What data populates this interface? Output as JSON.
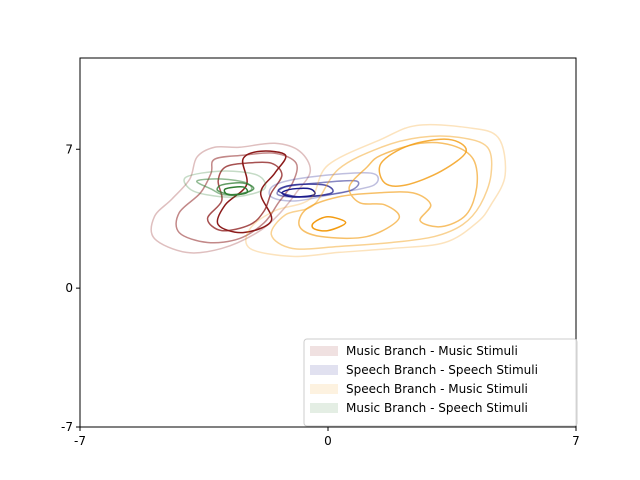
{
  "chart_data": {
    "type": "contour",
    "title": "",
    "xlabel": "",
    "ylabel": "",
    "xlim": [
      -7,
      7
    ],
    "ylim": [
      -7,
      11.6
    ],
    "x_ticks": [
      -7,
      0,
      7
    ],
    "y_ticks": [
      -7,
      0,
      7
    ],
    "grid": false,
    "legend_placement": "lower-right",
    "series": [
      {
        "name": "Music Branch - Music Stimuli",
        "color": "#8b1a1a",
        "levels": [
          [
            [
              -2.5,
              7.1
            ],
            [
              -1.5,
              7.3
            ],
            [
              -0.8,
              6.9
            ],
            [
              -0.5,
              5.9
            ],
            [
              -0.9,
              4.8
            ],
            [
              -1.4,
              3.7
            ],
            [
              -2.0,
              2.8
            ],
            [
              -3.0,
              2.0
            ],
            [
              -4.0,
              1.8
            ],
            [
              -4.9,
              2.5
            ],
            [
              -4.9,
              3.6
            ],
            [
              -4.4,
              4.5
            ],
            [
              -3.9,
              5.5
            ],
            [
              -3.7,
              6.6
            ],
            [
              -3.2,
              7.1
            ]
          ],
          [
            [
              -2.4,
              6.7
            ],
            [
              -1.5,
              6.8
            ],
            [
              -0.9,
              6.3
            ],
            [
              -1.0,
              5.3
            ],
            [
              -1.4,
              4.3
            ],
            [
              -1.8,
              3.3
            ],
            [
              -2.5,
              2.5
            ],
            [
              -3.4,
              2.3
            ],
            [
              -4.2,
              2.8
            ],
            [
              -4.2,
              3.8
            ],
            [
              -3.6,
              4.8
            ],
            [
              -3.3,
              5.8
            ],
            [
              -3.2,
              6.5
            ]
          ],
          [
            [
              -2.3,
              6.3
            ],
            [
              -1.6,
              6.3
            ],
            [
              -1.3,
              5.7
            ],
            [
              -1.6,
              4.8
            ],
            [
              -1.8,
              3.9
            ],
            [
              -2.2,
              3.2
            ],
            [
              -3.0,
              2.9
            ],
            [
              -3.4,
              3.5
            ],
            [
              -3.0,
              4.4
            ],
            [
              -3.1,
              5.4
            ],
            [
              -2.9,
              6.1
            ]
          ],
          [
            [
              -1.9,
              6.9
            ],
            [
              -1.2,
              6.7
            ],
            [
              -1.5,
              5.8
            ],
            [
              -1.9,
              4.8
            ],
            [
              -1.6,
              3.4
            ],
            [
              -2.4,
              2.8
            ],
            [
              -3.1,
              3.2
            ],
            [
              -2.9,
              4.2
            ],
            [
              -2.3,
              5.2
            ],
            [
              -2.4,
              6.5
            ]
          ]
        ]
      },
      {
        "name": "Speech Branch - Speech Stimuli",
        "color": "#1a1a8b",
        "levels": [
          [
            [
              -1.5,
              5.2
            ],
            [
              -0.5,
              5.6
            ],
            [
              1.2,
              5.8
            ],
            [
              1.3,
              5.2
            ],
            [
              0.3,
              4.8
            ],
            [
              -0.9,
              4.4
            ],
            [
              -1.6,
              4.6
            ]
          ],
          [
            [
              -1.2,
              5.1
            ],
            [
              -0.3,
              5.3
            ],
            [
              0.8,
              5.4
            ],
            [
              0.6,
              4.9
            ],
            [
              -0.6,
              4.6
            ],
            [
              -1.4,
              4.7
            ]
          ],
          [
            [
              -1.0,
              5.2
            ],
            [
              -0.1,
              5.2
            ],
            [
              0.1,
              4.8
            ],
            [
              -0.8,
              4.6
            ],
            [
              -1.4,
              4.9
            ]
          ],
          [
            [
              -1.0,
              5.0
            ],
            [
              -0.5,
              5.0
            ],
            [
              -0.4,
              4.7
            ],
            [
              -1.0,
              4.6
            ],
            [
              -1.3,
              4.8
            ]
          ]
        ]
      },
      {
        "name": "Speech Branch - Music Stimuli",
        "color": "#f39c12",
        "levels": [
          [
            [
              0.0,
              6.2
            ],
            [
              1.5,
              7.5
            ],
            [
              2.5,
              8.2
            ],
            [
              3.9,
              8.1
            ],
            [
              4.8,
              7.6
            ],
            [
              5.0,
              5.7
            ],
            [
              4.6,
              4.2
            ],
            [
              4.2,
              3.3
            ],
            [
              3.3,
              2.3
            ],
            [
              1.8,
              2.0
            ],
            [
              0.3,
              1.8
            ],
            [
              -1.0,
              1.6
            ],
            [
              -2.2,
              2.0
            ],
            [
              -2.2,
              3.0
            ],
            [
              -1.5,
              3.9
            ],
            [
              -0.5,
              4.5
            ]
          ],
          [
            [
              0.3,
              6.0
            ],
            [
              1.5,
              7.1
            ],
            [
              2.6,
              7.6
            ],
            [
              3.7,
              7.6
            ],
            [
              4.5,
              7.1
            ],
            [
              4.6,
              5.7
            ],
            [
              4.3,
              4.2
            ],
            [
              3.8,
              3.2
            ],
            [
              3.0,
              2.6
            ],
            [
              1.8,
              2.3
            ],
            [
              0.3,
              2.1
            ],
            [
              -1.0,
              2.0
            ],
            [
              -1.6,
              2.7
            ],
            [
              -1.2,
              3.7
            ],
            [
              -0.4,
              4.2
            ]
          ],
          [
            [
              1.5,
              6.7
            ],
            [
              2.6,
              7.3
            ],
            [
              3.5,
              7.2
            ],
            [
              4.1,
              6.5
            ],
            [
              4.2,
              5.1
            ],
            [
              3.9,
              3.7
            ],
            [
              3.2,
              3.1
            ],
            [
              2.6,
              3.4
            ],
            [
              2.9,
              4.2
            ],
            [
              2.4,
              4.8
            ],
            [
              1.4,
              4.8
            ],
            [
              0.3,
              4.6
            ],
            [
              -0.6,
              4.0
            ],
            [
              -0.8,
              3.1
            ],
            [
              -0.2,
              2.6
            ],
            [
              1.1,
              2.6
            ],
            [
              2.0,
              3.5
            ],
            [
              1.6,
              4.2
            ],
            [
              0.9,
              4.3
            ],
            [
              0.6,
              5.1
            ],
            [
              1.1,
              6.1
            ]
          ],
          [
            [
              1.5,
              6.3
            ],
            [
              2.3,
              7.2
            ],
            [
              3.4,
              7.5
            ],
            [
              3.9,
              6.9
            ],
            [
              3.2,
              5.9
            ],
            [
              2.2,
              5.2
            ],
            [
              1.6,
              5.3
            ]
          ],
          [
            [
              -0.4,
              3.3
            ],
            [
              0.0,
              3.6
            ],
            [
              0.5,
              3.3
            ],
            [
              0.0,
              2.9
            ],
            [
              -0.4,
              3.0
            ]
          ]
        ]
      },
      {
        "name": "Music Branch - Speech Stimuli",
        "color": "#2e7d32",
        "levels": [
          [
            [
              -4.0,
              5.6
            ],
            [
              -3.0,
              5.9
            ],
            [
              -2.0,
              5.7
            ],
            [
              -1.8,
              5.0
            ],
            [
              -2.6,
              4.6
            ],
            [
              -3.4,
              4.7
            ],
            [
              -3.9,
              5.0
            ]
          ],
          [
            [
              -3.7,
              5.4
            ],
            [
              -3.0,
              5.5
            ],
            [
              -2.3,
              5.3
            ],
            [
              -2.2,
              4.9
            ],
            [
              -2.9,
              4.7
            ],
            [
              -3.3,
              5.0
            ]
          ],
          [
            [
              -3.0,
              5.2
            ],
            [
              -2.4,
              5.3
            ],
            [
              -2.1,
              5.0
            ],
            [
              -2.6,
              4.7
            ],
            [
              -3.1,
              4.9
            ]
          ],
          [
            [
              -2.9,
              5.0
            ],
            [
              -2.4,
              5.1
            ],
            [
              -2.3,
              4.8
            ],
            [
              -2.8,
              4.7
            ]
          ]
        ]
      }
    ]
  }
}
